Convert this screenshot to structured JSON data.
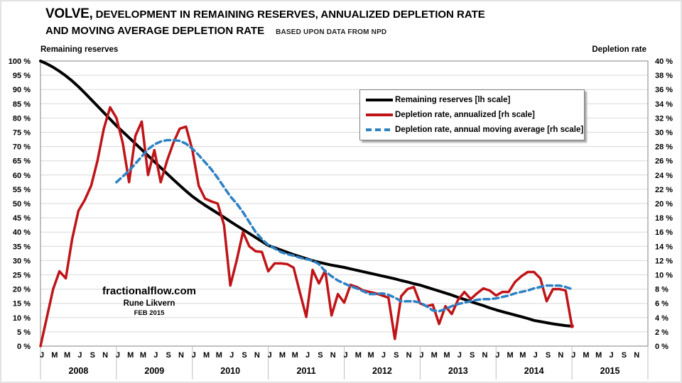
{
  "title": {
    "prefix": "VOLVE,",
    "line1_rest": " DEVELOPMENT IN REMAINING RESERVES, ANNUALIZED DEPLETION RATE",
    "line2": "AND MOVING AVERAGE DEPLETION RATE",
    "note": "BASED UPON DATA FROM NPD"
  },
  "axis_headers": {
    "left": "Remaining reserves",
    "right": "Depletion rate"
  },
  "watermark": {
    "site": "fractionalflow.com",
    "author": "Rune Likvern",
    "date": "FEB 2015"
  },
  "legend": [
    {
      "label": "Remaining reserves [lh scale]",
      "color": "#000000",
      "dashed": false
    },
    {
      "label": "Depletion rate, annualized [rh scale]",
      "color": "#bf1418",
      "dashed": false
    },
    {
      "label": "Depletion rate, annual moving average [rh scale]",
      "color": "#2e81c4",
      "dashed": true
    }
  ],
  "colors": {
    "black_series": "#000000",
    "red_series": "#bf1418",
    "blue_series": "#2e81c4",
    "gridline": "#d9d9d9",
    "plot_border": "#9e9e9e",
    "year_separator": "#bfbfbf",
    "background": "#ffffff"
  },
  "chart_data": {
    "type": "line",
    "title": "VOLVE, DEVELOPMENT IN REMAINING RESERVES, ANNUALIZED DEPLETION RATE AND MOVING AVERAGE DEPLETION RATE",
    "subtitle": "BASED UPON DATA FROM NPD",
    "grid": true,
    "legend_position": "upper center inside plot",
    "x_years": [
      "2008",
      "2009",
      "2010",
      "2011",
      "2012",
      "2013",
      "2014",
      "2015"
    ],
    "month_tick_letters": [
      "J",
      "M",
      "M",
      "J",
      "S",
      "N"
    ],
    "months_per_year": 12,
    "total_months_on_axis": 96,
    "left_axis": {
      "label": "Remaining reserves",
      "unit": "%",
      "min": 0,
      "max": 100,
      "step": 5,
      "ticks": [
        "100 %",
        "95 %",
        "90 %",
        "85 %",
        "80 %",
        "75 %",
        "70 %",
        "65 %",
        "60 %",
        "55 %",
        "50 %",
        "45 %",
        "40 %",
        "35 %",
        "30 %",
        "25 %",
        "20 %",
        "15 %",
        "10 %",
        "5 %",
        "0 %"
      ]
    },
    "right_axis": {
      "label": "Depletion rate",
      "unit": "%",
      "min": 0,
      "max": 40,
      "step": 2,
      "ticks": [
        "40 %",
        "38 %",
        "36 %",
        "34 %",
        "32 %",
        "30 %",
        "28 %",
        "26 %",
        "24 %",
        "22 %",
        "20 %",
        "18 %",
        "16 %",
        "14 %",
        "12 %",
        "10 %",
        "8 %",
        "6 %",
        "4 %",
        "2 %",
        "0 %"
      ]
    },
    "series": [
      {
        "name": "Remaining reserves [lh scale]",
        "axis": "left",
        "style": "solid",
        "color": "#000000",
        "width": 4,
        "start": "2008-01",
        "start_month_index": 0,
        "values": [
          100,
          99,
          97.8,
          96.4,
          94.8,
          93,
          91,
          88.8,
          86.5,
          84.2,
          81.9,
          79.6,
          77.3,
          75.2,
          73.1,
          71,
          68.9,
          66.8,
          64.7,
          62.6,
          60.5,
          58.4,
          56.4,
          54.4,
          52.5,
          50.9,
          49.4,
          48,
          46.6,
          45.2,
          43.7,
          42.3,
          40.9,
          39.5,
          38.1,
          36.7,
          35.3,
          34.5,
          33.7,
          32.9,
          32.1,
          31.4,
          30.7,
          30,
          29.4,
          28.9,
          28.4,
          28,
          27.6,
          27.1,
          26.6,
          26.1,
          25.6,
          25.1,
          24.6,
          24.1,
          23.6,
          23,
          22.5,
          21.9,
          21.4,
          20.7,
          20,
          19.3,
          18.6,
          17.9,
          17.1,
          16.4,
          15.6,
          14.9,
          14.2,
          13.4,
          12.7,
          12.1,
          11.5,
          10.9,
          10.3,
          9.7,
          9,
          8.6,
          8.2,
          7.8,
          7.5,
          7.2,
          7
        ]
      },
      {
        "name": "Depletion rate, annualized [rh scale]",
        "axis": "right",
        "style": "solid",
        "color": "#bf1418",
        "width": 3.5,
        "end_marker": true,
        "start": "2008-01",
        "start_month_index": 0,
        "values": [
          0,
          4,
          8,
          10.5,
          9.5,
          15,
          19,
          20.5,
          22.5,
          26,
          30.5,
          33.5,
          32,
          28.5,
          23,
          29.5,
          31.5,
          24,
          27.5,
          23,
          26,
          28.5,
          30.5,
          30.8,
          27.5,
          22.5,
          20.7,
          20.3,
          20,
          17,
          8.5,
          12,
          16,
          14,
          13.3,
          13.2,
          10.5,
          11.6,
          11.6,
          11.5,
          11,
          7.5,
          4.1,
          10.7,
          8.8,
          10.6,
          4.3,
          7.3,
          6.1,
          8.6,
          8.3,
          7.8,
          7.6,
          7.4,
          7.1,
          6.8,
          1,
          7,
          8,
          8.3,
          6,
          5.6,
          5.8,
          3.1,
          5.6,
          4.5,
          6.5,
          7.6,
          6.6,
          7.4,
          8.1,
          7.8,
          7.1,
          7.6,
          7.6,
          9,
          9.8,
          10.4,
          10.4,
          9.5,
          6.3,
          8,
          8,
          7.8,
          2.8
        ]
      },
      {
        "name": "Depletion rate, annual moving average [rh scale]",
        "axis": "right",
        "style": "dashed",
        "color": "#2e81c4",
        "width": 3.5,
        "start": "2009-01",
        "start_month_index": 12,
        "values": [
          23,
          23.8,
          24.6,
          25.6,
          26.6,
          27.6,
          28.3,
          28.7,
          28.9,
          28.9,
          28.8,
          28.4,
          27.7,
          26.8,
          25.8,
          24.8,
          23.6,
          22.3,
          21,
          20,
          18.8,
          17.4,
          16,
          15,
          14.2,
          13.7,
          13.2,
          12.9,
          12.7,
          12.4,
          12.2,
          12,
          11.5,
          10.5,
          9.8,
          9.2,
          8.8,
          8.4,
          8.1,
          7.7,
          7.3,
          7.3,
          7.4,
          7.2,
          6.8,
          6.3,
          6.3,
          6.3,
          6.1,
          5.6,
          5,
          4.9,
          5.2,
          5.6,
          5.9,
          6.1,
          6.3,
          6.5,
          6.6,
          6.6,
          6.7,
          6.9,
          7.1,
          7.4,
          7.6,
          7.8,
          8.1,
          8.3,
          8.5,
          8.5,
          8.5,
          8.3,
          8
        ]
      }
    ]
  }
}
